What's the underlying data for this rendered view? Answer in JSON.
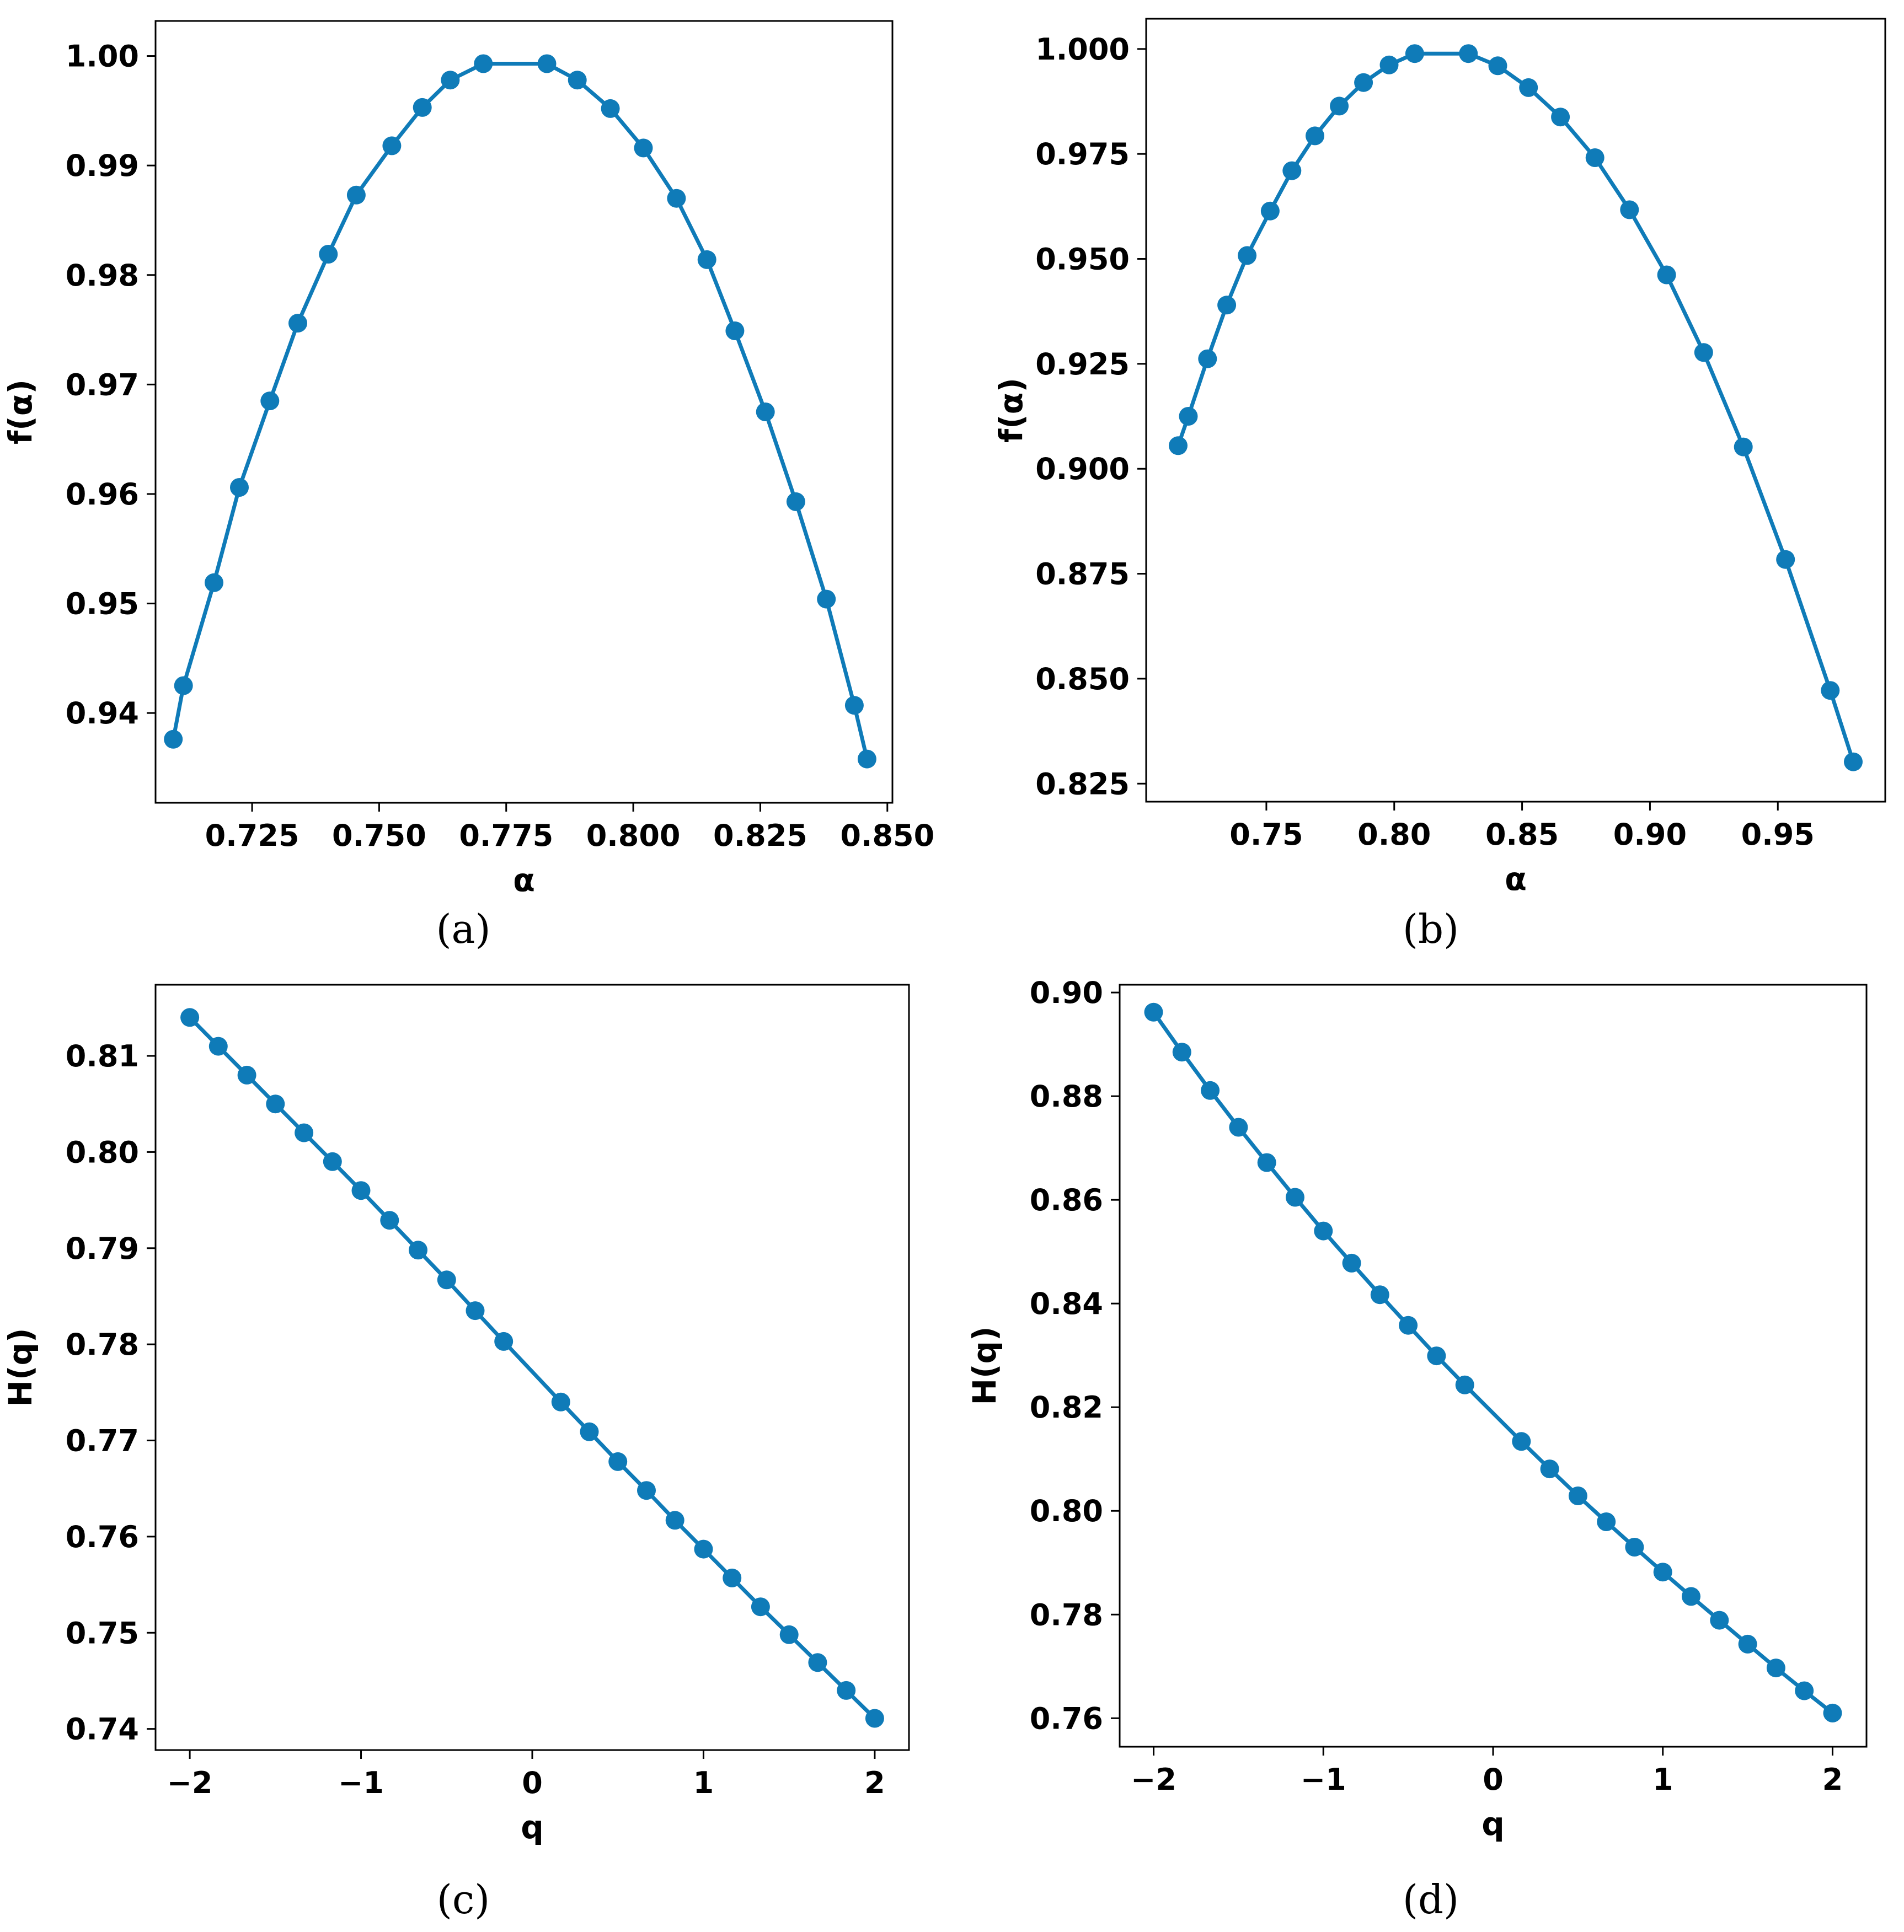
{
  "colors": {
    "series": "#0f7bb8",
    "axis": "#000000",
    "background": "#ffffff"
  },
  "chart_data": [
    {
      "id": "a",
      "type": "line",
      "panel_label": "(a)",
      "title": "",
      "xlabel": "α",
      "ylabel": "f(α)",
      "xlim": [
        0.706,
        0.851
      ],
      "ylim": [
        0.9318,
        1.0032
      ],
      "xticks": [
        0.725,
        0.75,
        0.775,
        0.8,
        0.825,
        0.85
      ],
      "xtick_labels": [
        "0.725",
        "0.750",
        "0.775",
        "0.800",
        "0.825",
        "0.850"
      ],
      "yticks": [
        0.94,
        0.95,
        0.96,
        0.97,
        0.98,
        0.99,
        1.0
      ],
      "ytick_labels": [
        "0.94",
        "0.95",
        "0.96",
        "0.97",
        "0.98",
        "0.99",
        "1.00"
      ],
      "grid": false,
      "marker": "circle",
      "x": [
        0.7095,
        0.7115,
        0.7175,
        0.7225,
        0.7285,
        0.734,
        0.74,
        0.7455,
        0.7525,
        0.7585,
        0.764,
        0.7705,
        0.783,
        0.789,
        0.7955,
        0.802,
        0.8085,
        0.8145,
        0.82,
        0.826,
        0.832,
        0.838,
        0.8435,
        0.846
      ],
      "y": [
        0.9376,
        0.9425,
        0.9519,
        0.9606,
        0.9685,
        0.9756,
        0.9819,
        0.9873,
        0.9918,
        0.9953,
        0.9978,
        0.9993,
        0.9993,
        0.9978,
        0.9952,
        0.9916,
        0.987,
        0.9814,
        0.9749,
        0.9675,
        0.9593,
        0.9504,
        0.9407,
        0.9358
      ]
    },
    {
      "id": "b",
      "type": "line",
      "panel_label": "(b)",
      "title": "",
      "xlabel": "α",
      "ylabel": "f(α)",
      "xlim": [
        0.703,
        0.992
      ],
      "ylim": [
        0.8207,
        1.0072
      ],
      "xticks": [
        0.75,
        0.8,
        0.85,
        0.9,
        0.95
      ],
      "xtick_labels": [
        "0.75",
        "0.80",
        "0.85",
        "0.90",
        "0.95"
      ],
      "yticks": [
        0.825,
        0.85,
        0.875,
        0.9,
        0.925,
        0.95,
        0.975,
        1.0
      ],
      "ytick_labels": [
        "0.825",
        "0.850",
        "0.875",
        "0.900",
        "0.925",
        "0.950",
        "0.975",
        "1.000"
      ],
      "grid": false,
      "marker": "circle",
      "x": [
        0.7155,
        0.7195,
        0.727,
        0.7345,
        0.7425,
        0.7515,
        0.76,
        0.769,
        0.7785,
        0.788,
        0.798,
        0.808,
        0.829,
        0.8405,
        0.8525,
        0.865,
        0.8785,
        0.892,
        0.9065,
        0.921,
        0.9365,
        0.953,
        0.9705,
        0.9795
      ],
      "y": [
        0.9055,
        0.9125,
        0.9262,
        0.939,
        0.9508,
        0.9614,
        0.971,
        0.9793,
        0.9864,
        0.992,
        0.9962,
        0.9989,
        0.9989,
        0.996,
        0.9908,
        0.9838,
        0.9741,
        0.9617,
        0.9462,
        0.9277,
        0.9052,
        0.8784,
        0.8472,
        0.8302
      ]
    },
    {
      "id": "c",
      "type": "line",
      "panel_label": "(c)",
      "title": "",
      "xlabel": "q",
      "ylabel": "H(q)",
      "xlim": [
        -2.2,
        2.2
      ],
      "ylim": [
        0.7378,
        0.8174
      ],
      "xticks": [
        -2,
        -1,
        0,
        1,
        2
      ],
      "xtick_labels": [
        "−2",
        "−1",
        "0",
        "1",
        "2"
      ],
      "yticks": [
        0.74,
        0.75,
        0.76,
        0.77,
        0.78,
        0.79,
        0.8,
        0.81
      ],
      "ytick_labels": [
        "0.74",
        "0.75",
        "0.76",
        "0.77",
        "0.78",
        "0.79",
        "0.80",
        "0.81"
      ],
      "grid": false,
      "marker": "circle",
      "x": [
        -2.0,
        -1.8333,
        -1.6667,
        -1.5,
        -1.3333,
        -1.1667,
        -1.0,
        -0.8333,
        -0.6667,
        -0.5,
        -0.3333,
        -0.1667,
        0.1667,
        0.3333,
        0.5,
        0.6667,
        0.8333,
        1.0,
        1.1667,
        1.3333,
        1.5,
        1.6667,
        1.8333,
        2.0
      ],
      "y": [
        0.814,
        0.811,
        0.808,
        0.805,
        0.802,
        0.799,
        0.796,
        0.7929,
        0.7898,
        0.7867,
        0.7835,
        0.7803,
        0.774,
        0.7709,
        0.7678,
        0.7648,
        0.7617,
        0.7587,
        0.7557,
        0.7527,
        0.7498,
        0.7469,
        0.744,
        0.7411
      ]
    },
    {
      "id": "d",
      "type": "line",
      "panel_label": "(d)",
      "title": "",
      "xlabel": "q",
      "ylabel": "H(q)",
      "xlim": [
        -2.2,
        2.2
      ],
      "ylim": [
        0.7545,
        0.9015
      ],
      "xticks": [
        -2,
        -1,
        0,
        1,
        2
      ],
      "xtick_labels": [
        "−2",
        "−1",
        "0",
        "1",
        "2"
      ],
      "yticks": [
        0.76,
        0.78,
        0.8,
        0.82,
        0.84,
        0.86,
        0.88,
        0.9
      ],
      "ytick_labels": [
        "0.76",
        "0.78",
        "0.80",
        "0.82",
        "0.84",
        "0.86",
        "0.88",
        "0.90"
      ],
      "grid": false,
      "marker": "circle",
      "x": [
        -2.0,
        -1.8333,
        -1.6667,
        -1.5,
        -1.3333,
        -1.1667,
        -1.0,
        -0.8333,
        -0.6667,
        -0.5,
        -0.3333,
        -0.1667,
        0.1667,
        0.3333,
        0.5,
        0.6667,
        0.8333,
        1.0,
        1.1667,
        1.3333,
        1.5,
        1.6667,
        1.8333,
        2.0
      ],
      "y": [
        0.8962,
        0.8885,
        0.8811,
        0.874,
        0.8672,
        0.8605,
        0.854,
        0.8478,
        0.8417,
        0.8358,
        0.8299,
        0.8243,
        0.8134,
        0.8081,
        0.8029,
        0.7979,
        0.793,
        0.7882,
        0.7835,
        0.7789,
        0.7743,
        0.7697,
        0.7653,
        0.761
      ]
    }
  ]
}
